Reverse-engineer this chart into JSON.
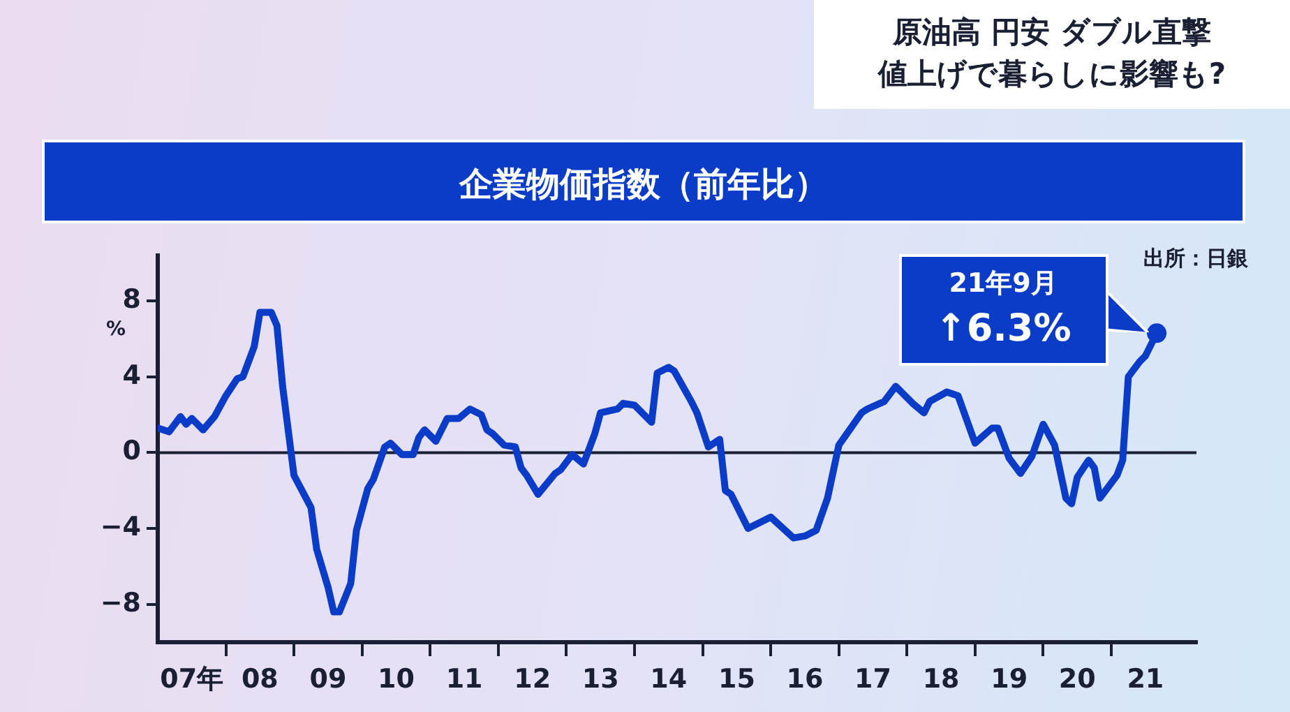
{
  "chart_data": {
    "type": "line",
    "title": "企業物価指数（前年比）",
    "ylabel": "%",
    "annotations": [
      "原油高 円安 ダブル直撃",
      "値上げで暮らしに影響も?",
      "出所：日銀",
      {
        "text": "21年9月\n↑6.3%",
        "x": "2021-09",
        "y": 6.3
      }
    ],
    "series": [
      {
        "color": "#0a3cc8",
        "x": [
          "2007-01",
          "2007-03",
          "2007-05",
          "2007-06",
          "2007-07",
          "2007-09",
          "2007-11",
          "2008-01",
          "2008-03",
          "2008-04",
          "2008-06",
          "2008-07",
          "2008-09",
          "2008-10",
          "2008-11",
          "2009-01",
          "2009-04",
          "2009-05",
          "2009-07",
          "2009-08",
          "2009-09",
          "2009-11",
          "2009-12",
          "2010-02",
          "2010-03",
          "2010-05",
          "2010-06",
          "2010-08",
          "2010-10",
          "2010-11",
          "2010-12",
          "2011-02",
          "2011-04",
          "2011-06",
          "2011-08",
          "2011-10",
          "2011-11",
          "2011-12",
          "2012-02",
          "2012-04",
          "2012-05",
          "2012-06",
          "2012-08",
          "2012-11",
          "2012-12",
          "2013-02",
          "2013-04",
          "2013-06",
          "2013-07",
          "2013-10",
          "2013-11",
          "2014-01",
          "2014-04",
          "2014-05",
          "2014-07",
          "2014-08",
          "2014-11",
          "2014-12",
          "2015-02",
          "2015-04",
          "2015-05",
          "2015-06",
          "2015-09",
          "2016-01",
          "2016-05",
          "2016-07",
          "2016-09",
          "2016-11",
          "2017-01",
          "2017-05",
          "2017-06",
          "2017-09",
          "2017-11",
          "2017-12",
          "2018-02",
          "2018-04",
          "2018-05",
          "2018-08",
          "2018-10",
          "2019-01",
          "2019-04",
          "2019-05",
          "2019-07",
          "2019-09",
          "2019-11",
          "2020-01",
          "2020-03",
          "2020-05",
          "2020-06",
          "2020-07",
          "2020-09",
          "2020-10",
          "2020-11",
          "2021-02",
          "2021-03",
          "2021-04",
          "2021-06",
          "2021-07",
          "2021-08",
          "2021-09"
        ],
        "values": [
          1.3,
          1.1,
          1.9,
          1.5,
          1.8,
          1.2,
          1.9,
          3.0,
          3.9,
          4.0,
          5.6,
          7.4,
          7.4,
          6.7,
          3.5,
          -1.2,
          -2.9,
          -5.1,
          -7.1,
          -8.4,
          -8.4,
          -6.9,
          -4.1,
          -1.9,
          -1.4,
          0.3,
          0.5,
          -0.1,
          -0.1,
          0.8,
          1.2,
          0.6,
          1.8,
          1.8,
          2.3,
          2.0,
          1.2,
          1.0,
          0.4,
          0.3,
          -0.8,
          -1.2,
          -2.2,
          -1.1,
          -0.9,
          -0.1,
          -0.6,
          1.0,
          2.1,
          2.3,
          2.6,
          2.5,
          1.6,
          4.2,
          4.5,
          4.3,
          2.7,
          2.1,
          0.3,
          0.7,
          -2.0,
          -2.2,
          -4.0,
          -3.4,
          -4.5,
          -4.4,
          -4.1,
          -2.4,
          0.4,
          2.1,
          2.3,
          2.7,
          3.5,
          3.2,
          2.6,
          2.1,
          2.7,
          3.2,
          3.0,
          0.5,
          1.3,
          1.3,
          -0.3,
          -1.1,
          -0.2,
          1.5,
          0.4,
          -2.4,
          -2.7,
          -1.3,
          -0.4,
          -0.8,
          -2.4,
          -1.2,
          -0.4,
          4.0,
          4.8,
          5.1,
          5.7,
          6.3
        ]
      }
    ],
    "xlim": [
      "2007-01",
      "2022-04"
    ],
    "ylim": [
      -10,
      10.4
    ],
    "xticks": [
      {
        "value": "2007-07",
        "label": "07年"
      },
      {
        "value": "2008-01",
        "label": null
      },
      {
        "value": "2008-07",
        "label": "08"
      },
      {
        "value": "2009-01",
        "label": null
      },
      {
        "value": "2009-07",
        "label": "09"
      },
      {
        "value": "2010-01",
        "label": null
      },
      {
        "value": "2010-07",
        "label": "10"
      },
      {
        "value": "2011-01",
        "label": null
      },
      {
        "value": "2011-07",
        "label": "11"
      },
      {
        "value": "2012-01",
        "label": null
      },
      {
        "value": "2012-07",
        "label": "12"
      },
      {
        "value": "2013-01",
        "label": null
      },
      {
        "value": "2013-07",
        "label": "13"
      },
      {
        "value": "2014-01",
        "label": null
      },
      {
        "value": "2014-07",
        "label": "14"
      },
      {
        "value": "2015-01",
        "label": null
      },
      {
        "value": "2015-07",
        "label": "15"
      },
      {
        "value": "2016-01",
        "label": null
      },
      {
        "value": "2016-07",
        "label": "16"
      },
      {
        "value": "2017-01",
        "label": null
      },
      {
        "value": "2017-07",
        "label": "17"
      },
      {
        "value": "2018-01",
        "label": null
      },
      {
        "value": "2018-07",
        "label": "18"
      },
      {
        "value": "2019-01",
        "label": null
      },
      {
        "value": "2019-07",
        "label": "19"
      },
      {
        "value": "2020-01",
        "label": null
      },
      {
        "value": "2020-07",
        "label": "20"
      },
      {
        "value": "2021-01",
        "label": null
      },
      {
        "value": "2021-07",
        "label": "21"
      }
    ],
    "yticks": [
      -8,
      -4,
      0,
      4,
      8
    ],
    "ref_lines": [
      {
        "axis": "y",
        "value": 0,
        "color": "#1a1f33"
      }
    ],
    "marker": "none",
    "line_style": "solid",
    "legend": false
  }
}
